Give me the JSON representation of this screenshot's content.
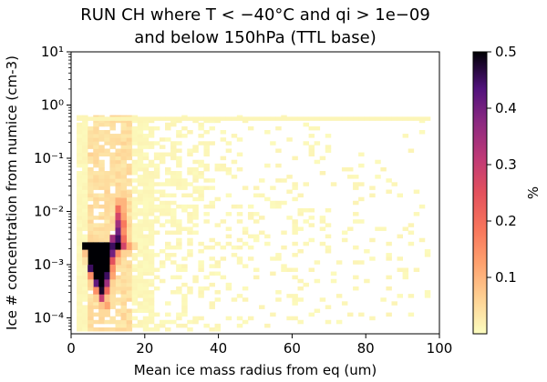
{
  "chart_data": {
    "type": "heatmap",
    "title_lines": [
      "RUN CH where T < −40°C and qi > 1e−09",
      "and below 150hPa (TTL base)"
    ],
    "xlabel": "Mean ice mass radius from eq (um)",
    "ylabel": "Ice # concentration from numice (cm-3)",
    "xlim": [
      0,
      100
    ],
    "ylim_log10": [
      -4.3,
      1
    ],
    "x_ticks": [
      {
        "value": 0,
        "label": "0"
      },
      {
        "value": 20,
        "label": "20"
      },
      {
        "value": 40,
        "label": "40"
      },
      {
        "value": 60,
        "label": "60"
      },
      {
        "value": 80,
        "label": "80"
      },
      {
        "value": 100,
        "label": "100"
      }
    ],
    "y_ticks": [
      {
        "log10": -4,
        "label": "10⁻⁴"
      },
      {
        "log10": -3,
        "label": "10⁻³"
      },
      {
        "log10": -2,
        "label": "10⁻²"
      },
      {
        "log10": -1,
        "label": "10⁻¹"
      },
      {
        "log10": 0,
        "label": "10⁰"
      },
      {
        "log10": 1,
        "label": "10¹"
      }
    ],
    "colorbar": {
      "label": "%",
      "range": [
        0,
        0.5
      ],
      "colormap": "magma_r",
      "ticks": [
        {
          "value": 0.1,
          "label": "0.1"
        },
        {
          "value": 0.2,
          "label": "0.2"
        },
        {
          "value": 0.3,
          "label": "0.3"
        },
        {
          "value": 0.4,
          "label": "0.4"
        },
        {
          "value": 0.5,
          "label": "0.5"
        }
      ]
    },
    "bins": {
      "x_bin_um": 1.5,
      "y_bin_log10": 0.07
    },
    "cells": [
      [
        3,
        -2.72,
        0.5
      ],
      [
        4.5,
        -2.72,
        0.5
      ],
      [
        6,
        -2.72,
        0.5
      ],
      [
        7.5,
        -2.72,
        0.5
      ],
      [
        9,
        -2.72,
        0.5
      ],
      [
        10.5,
        -2.72,
        0.45
      ],
      [
        12,
        -2.72,
        0.5
      ],
      [
        13.5,
        -2.72,
        0.28
      ],
      [
        15,
        -2.72,
        0.12
      ],
      [
        16.5,
        -2.72,
        0.05
      ],
      [
        4.5,
        -2.86,
        0.5
      ],
      [
        6,
        -2.86,
        0.5
      ],
      [
        7.5,
        -2.86,
        0.5
      ],
      [
        9,
        -2.86,
        0.5
      ],
      [
        10.5,
        -2.86,
        0.4
      ],
      [
        4.5,
        -3.0,
        0.5
      ],
      [
        6,
        -3.0,
        0.5
      ],
      [
        7.5,
        -3.0,
        0.5
      ],
      [
        9,
        -3.0,
        0.5
      ],
      [
        10.5,
        -3.0,
        0.25
      ],
      [
        4.5,
        -3.14,
        0.45
      ],
      [
        6,
        -3.14,
        0.5
      ],
      [
        7.5,
        -3.14,
        0.5
      ],
      [
        9,
        -3.14,
        0.5
      ],
      [
        10.5,
        -3.14,
        0.15
      ],
      [
        6,
        -3.28,
        0.5
      ],
      [
        7.5,
        -3.28,
        0.5
      ],
      [
        9,
        -3.28,
        0.45
      ],
      [
        6,
        -3.42,
        0.42
      ],
      [
        7.5,
        -3.42,
        0.5
      ],
      [
        9,
        -3.42,
        0.35
      ],
      [
        7.5,
        -3.56,
        0.48
      ],
      [
        9,
        -3.56,
        0.2
      ],
      [
        7.5,
        -3.7,
        0.3
      ],
      [
        9,
        -3.7,
        0.08
      ],
      [
        9,
        -3.84,
        0.12
      ],
      [
        10.5,
        -2.58,
        0.35
      ],
      [
        12,
        -2.58,
        0.45
      ],
      [
        13.5,
        -2.58,
        0.2
      ],
      [
        12,
        -2.44,
        0.4
      ],
      [
        13.5,
        -2.44,
        0.15
      ],
      [
        12,
        -2.3,
        0.35
      ],
      [
        13.5,
        -2.3,
        0.18
      ],
      [
        12,
        -2.16,
        0.28
      ],
      [
        13.5,
        -2.16,
        0.12
      ],
      [
        12,
        -2.02,
        0.2
      ],
      [
        13.5,
        -2.02,
        0.1
      ],
      [
        13.5,
        -1.88,
        0.1
      ],
      [
        12,
        -1.88,
        0.1
      ],
      [
        13.5,
        -1.74,
        0.06
      ],
      [
        13.5,
        -1.6,
        0.04
      ],
      [
        3,
        -2.86,
        0.08
      ],
      [
        12,
        -2.86,
        0.15
      ],
      [
        12,
        -3.0,
        0.08
      ],
      [
        3,
        -3.0,
        0.04
      ],
      [
        13.5,
        -2.86,
        0.06
      ],
      [
        4.5,
        -3.28,
        0.15
      ],
      [
        10.5,
        -3.28,
        0.12
      ],
      [
        4.5,
        -3.42,
        0.06
      ],
      [
        10.5,
        -3.42,
        0.06
      ],
      [
        6,
        -3.56,
        0.15
      ],
      [
        10.5,
        -3.56,
        0.05
      ],
      [
        6,
        -3.7,
        0.06
      ],
      [
        10.5,
        -3.7,
        0.04
      ],
      [
        7.5,
        -3.84,
        0.08
      ],
      [
        7.5,
        -3.98,
        0.05
      ],
      [
        9,
        -3.98,
        0.05
      ]
    ]
  }
}
